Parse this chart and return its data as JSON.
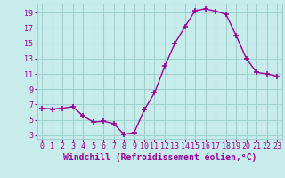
{
  "x": [
    0,
    1,
    2,
    3,
    4,
    5,
    6,
    7,
    8,
    9,
    10,
    11,
    12,
    13,
    14,
    15,
    16,
    17,
    18,
    19,
    20,
    21,
    22,
    23
  ],
  "y": [
    6.5,
    6.4,
    6.5,
    6.7,
    5.5,
    4.7,
    4.8,
    4.5,
    3.1,
    3.3,
    6.3,
    8.5,
    12.0,
    15.0,
    17.2,
    19.3,
    19.5,
    19.2,
    18.8,
    16.0,
    13.0,
    11.2,
    11.0,
    10.7
  ],
  "line_color": "#990099",
  "marker": "+",
  "marker_size": 4,
  "bg_color": "#c8ecec",
  "grid_color": "#a0d0d0",
  "xlabel": "Windchill (Refroidissement éolien,°C)",
  "xlabel_color": "#990099",
  "ylabel_ticks": [
    3,
    5,
    7,
    9,
    11,
    13,
    15,
    17,
    19
  ],
  "ylim": [
    2.5,
    20.2
  ],
  "xlim": [
    -0.5,
    23.5
  ],
  "xtick_labels": [
    "0",
    "1",
    "2",
    "3",
    "4",
    "5",
    "6",
    "7",
    "8",
    "9",
    "10",
    "11",
    "12",
    "13",
    "14",
    "15",
    "16",
    "17",
    "18",
    "19",
    "20",
    "21",
    "22",
    "23"
  ],
  "tick_color": "#990099",
  "label_fontsize": 7,
  "tick_fontsize": 6
}
